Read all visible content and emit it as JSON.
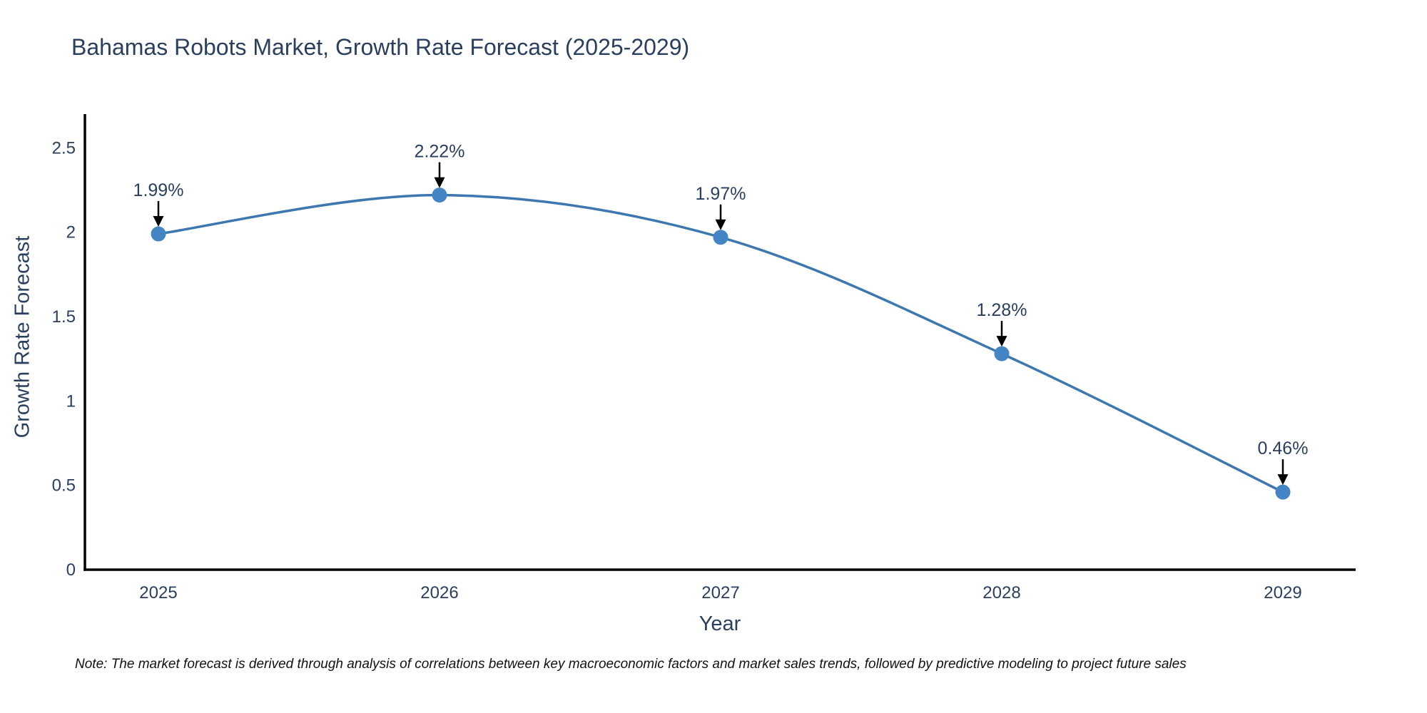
{
  "chart_data": {
    "type": "line",
    "title": "Bahamas Robots Market, Growth Rate Forecast (2025-2029)",
    "xlabel": "Year",
    "ylabel": "Growth Rate Forecast",
    "categories": [
      "2025",
      "2026",
      "2027",
      "2028",
      "2029"
    ],
    "series": [
      {
        "name": "Growth Rate Forecast",
        "values": [
          1.99,
          2.22,
          1.97,
          1.28,
          0.46
        ],
        "point_labels": [
          "1.99%",
          "2.22%",
          "1.97%",
          "1.28%",
          "0.46%"
        ]
      }
    ],
    "yticks": [
      0,
      0.5,
      1,
      1.5,
      2,
      2.5
    ],
    "ytick_labels": [
      "0",
      "0.5",
      "1",
      "1.5",
      "2",
      "2.5"
    ],
    "ylim": [
      0,
      2.7
    ],
    "grid": false,
    "legend_position": "none",
    "line_shape": "spline",
    "annotation_arrows": true,
    "colors": {
      "line": "#3c77b0",
      "marker": "#4384c4",
      "axis": "#000000",
      "text": "#2a3f5f",
      "annotation_arrow": "#000000"
    }
  },
  "footnote": {
    "text": "Note: The market forecast is derived through analysis of correlations between key macroeconomic factors and market sales trends, followed by predictive modeling to project future sales"
  }
}
